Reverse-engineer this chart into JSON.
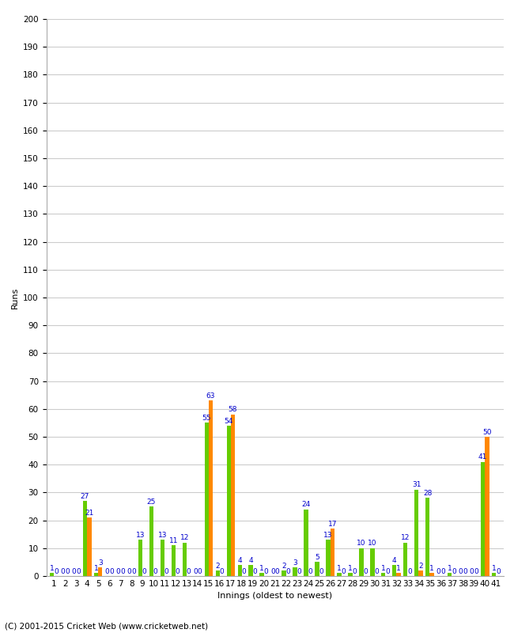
{
  "green_vals": [
    1,
    0,
    0,
    27,
    1,
    0,
    0,
    0,
    13,
    25,
    13,
    11,
    12,
    0,
    55,
    2,
    54,
    4,
    4,
    1,
    0,
    2,
    3,
    24,
    5,
    13,
    1,
    1,
    10,
    10,
    1,
    4,
    12,
    31,
    28,
    0,
    1,
    0,
    0,
    41,
    1
  ],
  "orange_vals": [
    0,
    0,
    0,
    21,
    3,
    0,
    0,
    0,
    0,
    0,
    0,
    0,
    0,
    0,
    63,
    0,
    58,
    0,
    0,
    0,
    0,
    0,
    0,
    0,
    0,
    17,
    0,
    0,
    0,
    0,
    0,
    1,
    0,
    2,
    1,
    0,
    0,
    0,
    0,
    50,
    0
  ],
  "bar_green": "#66cc00",
  "bar_orange": "#ff8800",
  "background": "#ffffff",
  "grid_color": "#cccccc",
  "text_color": "#0000cc",
  "ylabel": "Runs",
  "xlabel": "Innings (oldest to newest)",
  "footer": "(C) 2001-2015 Cricket Web (www.cricketweb.net)",
  "ylim": [
    0,
    200
  ],
  "yticks": [
    0,
    10,
    20,
    30,
    40,
    50,
    60,
    70,
    80,
    90,
    100,
    110,
    120,
    130,
    140,
    150,
    160,
    170,
    180,
    190,
    200
  ],
  "n": 41,
  "bar_width": 0.38,
  "label_fontsize": 6.5,
  "tick_fontsize": 7.5,
  "ylabel_fontsize": 8,
  "xlabel_fontsize": 8,
  "footer_fontsize": 7.5
}
